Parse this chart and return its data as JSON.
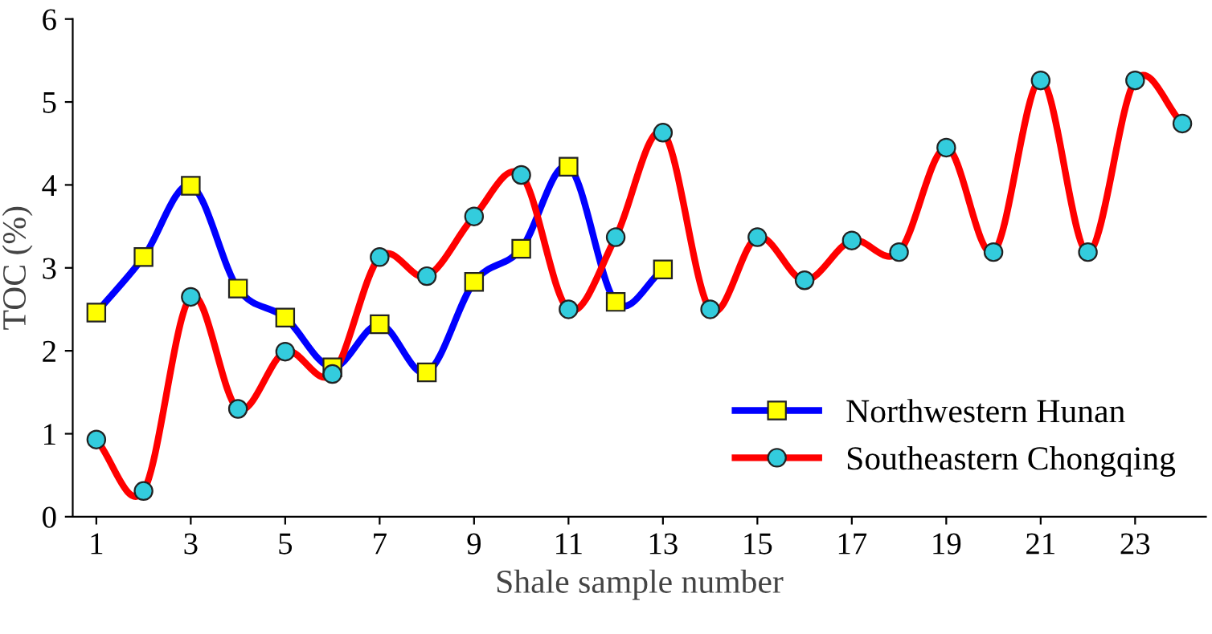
{
  "chart_data": {
    "type": "line",
    "xlabel": "Shale sample number",
    "ylabel": "TOC (%)",
    "xlim": [
      0.5,
      24.5
    ],
    "xticks": [
      1,
      3,
      5,
      7,
      9,
      11,
      13,
      15,
      17,
      19,
      21,
      23
    ],
    "ylim": [
      0,
      6
    ],
    "yticks": [
      0,
      1,
      2,
      3,
      4,
      5,
      6
    ],
    "grid": false,
    "legend": "bottom right",
    "line_style": "solid",
    "series": [
      {
        "name": "Northwestern Hunan",
        "color": "#0000ff",
        "marker": "square",
        "colors": [
          "#ffff00",
          "#ffff00",
          "#ffff00",
          "#ffff00",
          "#ffff00",
          "#ffff00",
          "#ffff00",
          "#ffff00",
          "#ffff00",
          "#ffff00",
          "#ffff00",
          "#ffff00",
          "#ffff00"
        ],
        "x": [
          1,
          2,
          3,
          4,
          5,
          6,
          7,
          8,
          9,
          10,
          11,
          12,
          13
        ],
        "values": [
          2.46,
          3.13,
          3.99,
          2.75,
          2.4,
          1.8,
          2.32,
          1.74,
          2.83,
          3.23,
          4.22,
          2.59,
          2.98
        ]
      },
      {
        "name": "Southeastern Chongqing",
        "color": "#ff0000",
        "marker": "circle",
        "colors": [
          "#33ccdd",
          "#33ccdd",
          "#33ccdd",
          "#33ccdd",
          "#33ccdd",
          "#33ccdd",
          "#33ccdd",
          "#33ccdd",
          "#33ccdd",
          "#33ccdd",
          "#33ccdd",
          "#33ccdd",
          "#33ccdd",
          "#33ccdd",
          "#33ccdd",
          "#33ccdd",
          "#33ccdd",
          "#33ccdd",
          "#33ccdd",
          "#33ccdd",
          "#33ccdd",
          "#33ccdd",
          "#33ccdd",
          "#33ccdd"
        ],
        "x": [
          1,
          2,
          3,
          4,
          5,
          6,
          7,
          8,
          9,
          10,
          11,
          12,
          13,
          14,
          15,
          16,
          17,
          18,
          19,
          20,
          21,
          22,
          23,
          24
        ],
        "values": [
          0.93,
          0.31,
          2.65,
          1.3,
          1.99,
          1.72,
          3.13,
          2.9,
          3.62,
          4.12,
          2.5,
          3.37,
          4.63,
          2.5,
          3.37,
          2.85,
          3.33,
          3.19,
          4.45,
          3.19,
          5.26,
          3.19,
          5.26,
          4.74
        ]
      }
    ]
  }
}
